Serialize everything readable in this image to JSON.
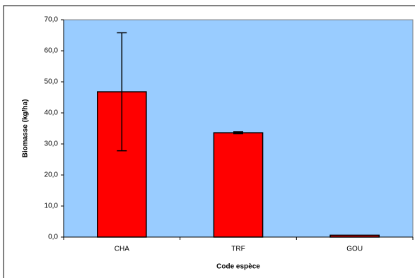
{
  "chart_data": {
    "type": "bar",
    "categories": [
      "CHA",
      "TRF",
      "GOU"
    ],
    "values": [
      46.8,
      33.6,
      0.6
    ],
    "errors": [
      19.0,
      0.3,
      0.0
    ],
    "color": "#ff0000",
    "plot_background": "#99ccff",
    "xlabel": "Code espèce",
    "ylabel": "Biomasse (kg/ha)",
    "ylim": [
      0,
      70
    ],
    "yticks": [
      {
        "value": 0,
        "label": "0,0"
      },
      {
        "value": 10,
        "label": "10,0"
      },
      {
        "value": 20,
        "label": "20,0"
      },
      {
        "value": 30,
        "label": "30,0"
      },
      {
        "value": 40,
        "label": "40,0"
      },
      {
        "value": 50,
        "label": "50,0"
      },
      {
        "value": 60,
        "label": "60,0"
      },
      {
        "value": 70,
        "label": "70,0"
      }
    ]
  }
}
